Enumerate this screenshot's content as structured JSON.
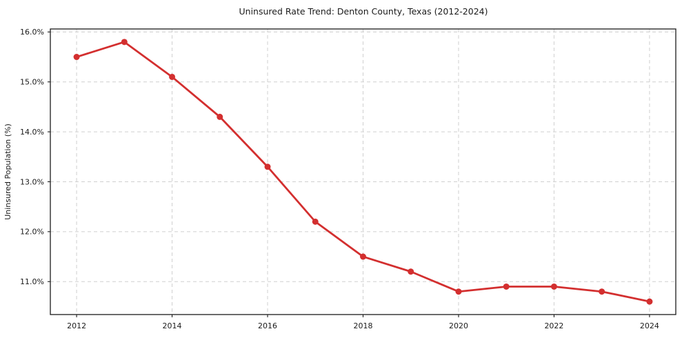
{
  "chart_data": {
    "type": "line",
    "title": "Uninsured Rate Trend: Denton County, Texas (2012-2024)",
    "xlabel": "",
    "ylabel": "Uninsured Population (%)",
    "x": [
      2012,
      2013,
      2014,
      2015,
      2016,
      2017,
      2018,
      2019,
      2020,
      2021,
      2022,
      2023,
      2024
    ],
    "values": [
      15.5,
      15.8,
      15.1,
      14.3,
      13.3,
      12.2,
      11.5,
      11.2,
      10.8,
      10.9,
      10.9,
      10.8,
      10.6
    ],
    "xlim": [
      2011.45,
      2024.55
    ],
    "ylim": [
      10.34,
      16.06
    ],
    "x_ticks": [
      2012,
      2014,
      2016,
      2018,
      2020,
      2022,
      2024
    ],
    "x_tick_labels": [
      "2012",
      "2014",
      "2016",
      "2018",
      "2020",
      "2022",
      "2024"
    ],
    "y_ticks": [
      11,
      12,
      13,
      14,
      15,
      16
    ],
    "y_tick_labels": [
      "11.0%",
      "12.0%",
      "13.0%",
      "14.0%",
      "15.0%",
      "16.0%"
    ],
    "grid": true,
    "grid_on": "both",
    "legend_position": "none",
    "colors": {
      "line_color": "#d32f2f",
      "marker_color": "#d32f2f",
      "grid_color": "#cfcfcf",
      "frame_color": "#1a1a1a",
      "background": "#ffffff",
      "text_color": "#1a1a1a"
    }
  }
}
